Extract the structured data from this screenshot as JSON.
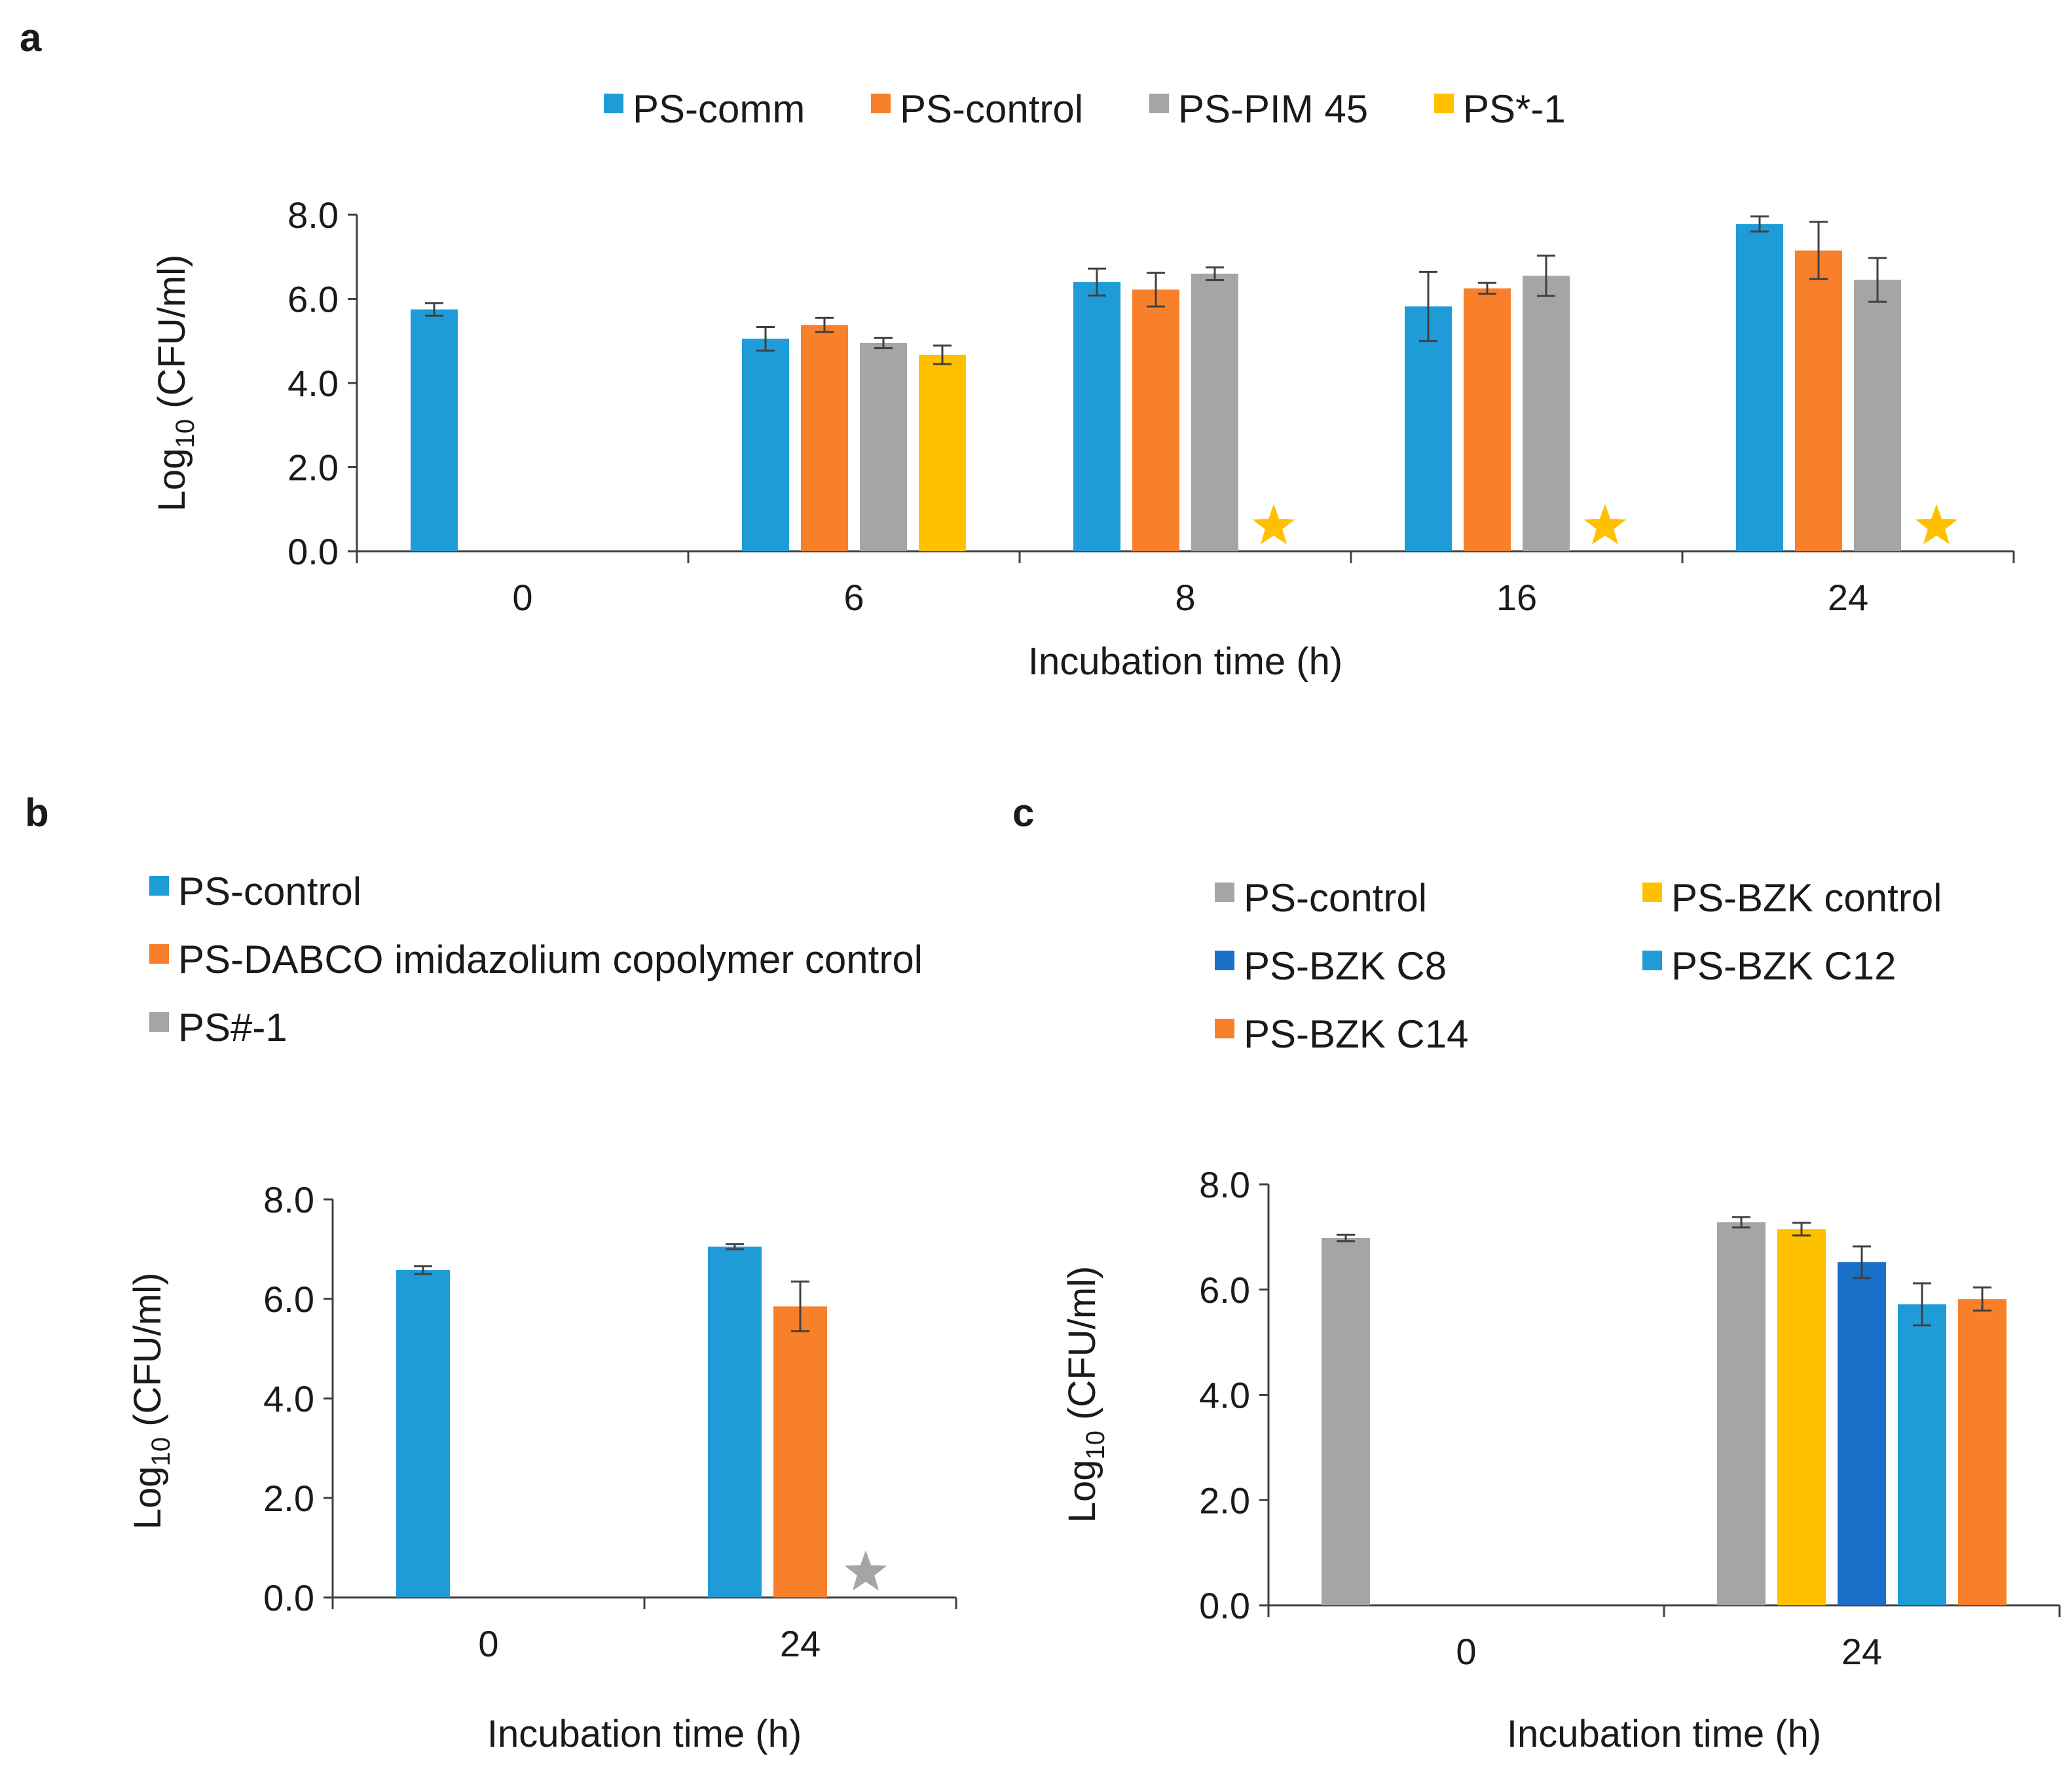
{
  "chart_data": [
    {
      "panel": "a",
      "type": "bar",
      "categories": [
        "0",
        "6",
        "8",
        "16",
        "24"
      ],
      "xlabel": "Incubation time (h)",
      "ylabel": "Log10 (CFU/ml)",
      "ylabel_main": "Log",
      "ylabel_sub": "10",
      "ylabel_rest": " (CFU/ml)",
      "ylim": [
        0,
        8
      ],
      "yticks": [
        "0.0",
        "2.0",
        "4.0",
        "6.0",
        "8.0"
      ],
      "legend_position": "top",
      "series": [
        {
          "name": "PS-comm",
          "color": "#1f9bd7",
          "values": [
            5.75,
            5.05,
            6.4,
            5.82,
            7.78
          ],
          "errors": [
            0.15,
            0.28,
            0.32,
            0.82,
            0.18
          ]
        },
        {
          "name": "PS-control",
          "color": "#f9802a",
          "values": [
            null,
            5.38,
            6.22,
            6.25,
            7.15
          ],
          "errors": [
            null,
            0.17,
            0.4,
            0.13,
            0.68
          ]
        },
        {
          "name": "PS-PIM 45",
          "color": "#a5a5a5",
          "values": [
            null,
            4.95,
            6.6,
            6.55,
            6.45
          ],
          "errors": [
            null,
            0.12,
            0.15,
            0.48,
            0.52
          ]
        },
        {
          "name": "PS*-1",
          "color": "#ffc000",
          "values": [
            null,
            4.67,
            0,
            0,
            0
          ],
          "errors": [
            null,
            0.22,
            null,
            null,
            null
          ]
        }
      ],
      "star_markers": [
        {
          "category": "8",
          "series": "PS*-1",
          "color": "#ffc000"
        },
        {
          "category": "16",
          "series": "PS*-1",
          "color": "#ffc000"
        },
        {
          "category": "24",
          "series": "PS*-1",
          "color": "#ffc000"
        }
      ]
    },
    {
      "panel": "b",
      "type": "bar",
      "categories": [
        "0",
        "24"
      ],
      "xlabel": "Incubation time (h)",
      "ylabel": "Log10 (CFU/ml)",
      "ylabel_main": "Log",
      "ylabel_sub": "10",
      "ylabel_rest": " (CFU/ml)",
      "ylim": [
        0,
        8
      ],
      "yticks": [
        "0.0",
        "2.0",
        "4.0",
        "6.0",
        "8.0"
      ],
      "legend_position": "top",
      "series": [
        {
          "name": "PS-control",
          "color": "#1f9bd7",
          "values": [
            6.58,
            7.05
          ],
          "errors": [
            0.08,
            0.05
          ]
        },
        {
          "name": "PS-DABCO imidazolium copolymer control",
          "color": "#f9802a",
          "values": [
            null,
            5.85
          ],
          "errors": [
            null,
            0.5
          ]
        },
        {
          "name": "PS#-1",
          "color": "#a5a5a5",
          "values": [
            null,
            0
          ],
          "errors": [
            null,
            null
          ]
        }
      ],
      "star_markers": [
        {
          "category": "24",
          "series": "PS#-1",
          "color": "#a5a5a5"
        }
      ]
    },
    {
      "panel": "c",
      "type": "bar",
      "categories": [
        "0",
        "24"
      ],
      "xlabel": "Incubation time (h)",
      "ylabel": "Log10 (CFU/ml)",
      "ylabel_main": "Log",
      "ylabel_sub": "10",
      "ylabel_rest": " (CFU/ml)",
      "ylim": [
        0,
        8
      ],
      "yticks": [
        "0.0",
        "2.0",
        "4.0",
        "6.0",
        "8.0"
      ],
      "legend_position": "top",
      "series": [
        {
          "name": "PS-control",
          "color": "#a5a5a5",
          "values": [
            6.98,
            7.28
          ],
          "errors": [
            0.06,
            0.1
          ]
        },
        {
          "name": "PS-BZK control",
          "color": "#ffc000",
          "values": [
            null,
            7.15
          ],
          "errors": [
            null,
            0.12
          ]
        },
        {
          "name": "PS-BZK C8",
          "color": "#1a70c8",
          "values": [
            null,
            6.52
          ],
          "errors": [
            null,
            0.3
          ]
        },
        {
          "name": "PS-BZK C12",
          "color": "#1f9bd7",
          "values": [
            null,
            5.72
          ],
          "errors": [
            null,
            0.4
          ]
        },
        {
          "name": "PS-BZK C14",
          "color": "#f9802a",
          "values": [
            null,
            5.82
          ],
          "errors": [
            null,
            0.22
          ]
        }
      ],
      "star_markers": []
    }
  ]
}
